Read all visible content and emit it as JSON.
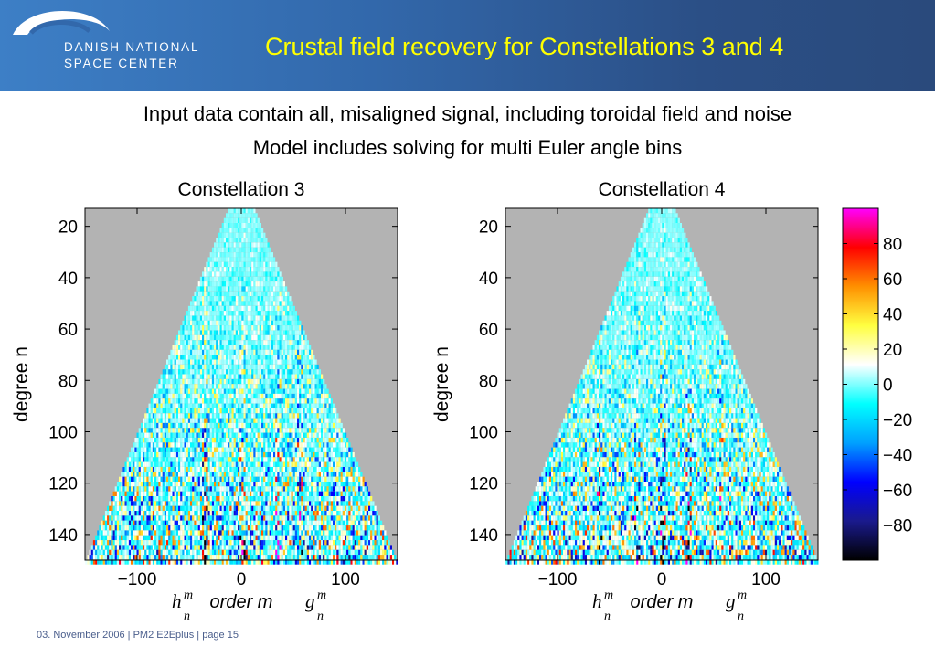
{
  "header": {
    "logo_line1": "DANISH NATIONAL",
    "logo_line2": "SPACE CENTER",
    "title": "Crustal field recovery for Constellations 3 and 4",
    "colors": {
      "title": "#ffff00",
      "band": "#3268ab"
    }
  },
  "subtitles": [
    "Input data contain all, misaligned signal, including toroidal field and noise",
    "Model includes solving for multi Euler angle bins"
  ],
  "footer": "03. November  2006 | PM2 E2Eplus | page 15",
  "chart_data": [
    {
      "type": "heatmap",
      "title": "Constellation 3",
      "ylabel": "degree n",
      "xlabel": "order m",
      "x_side_labels": [
        "h",
        "g"
      ],
      "xlim": [
        -150,
        150
      ],
      "ylim": [
        150,
        13
      ],
      "x_ticks": [
        "−100",
        "0",
        "100"
      ],
      "x_tick_values": [
        -100,
        0,
        100
      ],
      "y_ticks": [
        "20",
        "40",
        "60",
        "80",
        "100",
        "120",
        "140"
      ],
      "y_tick_values": [
        20,
        40,
        60,
        80,
        100,
        120,
        140
      ],
      "defined_region": "|m| <= n",
      "background_color": "#b3b3b3"
    },
    {
      "type": "heatmap",
      "title": "Constellation 4",
      "ylabel": "degree n",
      "xlabel": "order m",
      "x_side_labels": [
        "h",
        "g"
      ],
      "xlim": [
        -150,
        150
      ],
      "ylim": [
        150,
        13
      ],
      "x_ticks": [
        "−100",
        "0",
        "100"
      ],
      "x_tick_values": [
        -100,
        0,
        100
      ],
      "y_ticks": [
        "20",
        "40",
        "60",
        "80",
        "100",
        "120",
        "140"
      ],
      "y_tick_values": [
        20,
        40,
        60,
        80,
        100,
        120,
        140
      ],
      "defined_region": "|m| <= n",
      "background_color": "#b3b3b3"
    }
  ],
  "colorbar": {
    "range": [
      -100,
      100
    ],
    "ticks": [
      "80",
      "60",
      "40",
      "20",
      "0",
      "−20",
      "−40",
      "−60",
      "−80"
    ],
    "tick_values": [
      80,
      60,
      40,
      20,
      0,
      -20,
      -40,
      -60,
      -80
    ],
    "colors": [
      "#000000",
      "#1a1a8c",
      "#0000ff",
      "#00a0ff",
      "#00ffff",
      "#ffffff",
      "#ffff40",
      "#ff9000",
      "#ff0000",
      "#ff00ff"
    ]
  }
}
